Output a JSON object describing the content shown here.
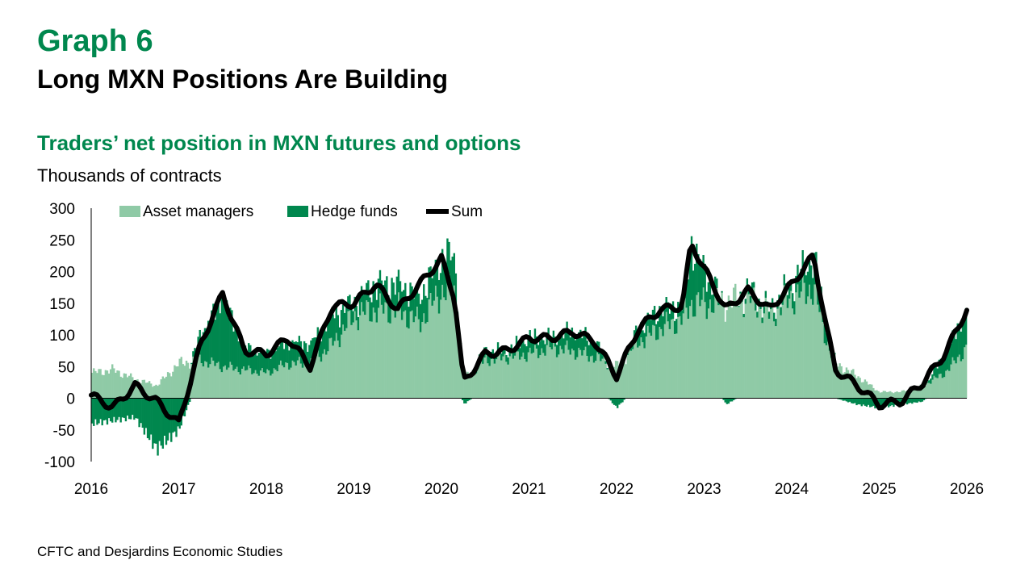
{
  "header": {
    "graph_number": "Graph 6",
    "title": "Long MXN Positions Are Building",
    "subtitle": "Traders’ net position in MXN futures and options",
    "units": "Thousands of contracts"
  },
  "source": "CFTC and Desjardins Economic Studies",
  "colors": {
    "accent": "#00874E",
    "asset_managers": "#8FCAA6",
    "hedge_funds": "#00874E",
    "sum": "#000000"
  },
  "chart_data": {
    "type": "bar",
    "title": "Traders’ net position in MXN futures and options",
    "ylabel": "Thousands of contracts",
    "ylim": [
      -100,
      300
    ],
    "yticks": [
      "300",
      "250",
      "200",
      "150",
      "100",
      "50",
      "0",
      "-50",
      "-100"
    ],
    "xlim": [
      2016,
      2026
    ],
    "xticks": [
      "2016",
      "2017",
      "2018",
      "2019",
      "2020",
      "2021",
      "2022",
      "2023",
      "2024",
      "2025",
      "2026"
    ],
    "legend": [
      "Asset managers",
      "Hedge funds",
      "Sum"
    ],
    "legend_position": "top",
    "x": [
      2016.0,
      2016.25,
      2016.5,
      2016.75,
      2017.0,
      2017.25,
      2017.5,
      2017.75,
      2018.0,
      2018.25,
      2018.5,
      2018.75,
      2019.0,
      2019.25,
      2019.5,
      2019.75,
      2020.0,
      2020.15,
      2020.25,
      2020.5,
      2020.75,
      2021.0,
      2021.25,
      2021.5,
      2021.75,
      2022.0,
      2022.25,
      2022.5,
      2022.75,
      2022.85,
      2023.0,
      2023.25,
      2023.5,
      2023.75,
      2024.0,
      2024.25,
      2024.4,
      2024.5,
      2024.75,
      2025.0,
      2025.25,
      2025.5,
      2025.75,
      2026.0
    ],
    "series": [
      {
        "name": "Asset managers",
        "type": "bar",
        "values": [
          40,
          45,
          30,
          20,
          55,
          60,
          50,
          45,
          40,
          55,
          55,
          85,
          130,
          140,
          140,
          120,
          170,
          165,
          30,
          60,
          65,
          70,
          80,
          75,
          65,
          50,
          90,
          110,
          125,
          150,
          150,
          150,
          160,
          130,
          160,
          175,
          90,
          55,
          35,
          10,
          10,
          20,
          40,
          80
        ]
      },
      {
        "name": "Hedge funds",
        "type": "bar",
        "values": [
          -40,
          -35,
          -30,
          -80,
          -50,
          40,
          110,
          35,
          30,
          35,
          30,
          45,
          20,
          40,
          40,
          40,
          50,
          60,
          -10,
          15,
          10,
          25,
          15,
          30,
          25,
          -15,
          20,
          30,
          20,
          90,
          55,
          -10,
          10,
          10,
          20,
          50,
          20,
          0,
          -10,
          -15,
          -10,
          -5,
          30,
          60
        ]
      },
      {
        "name": "Sum",
        "type": "line",
        "values": [
          5,
          -15,
          20,
          -5,
          -40,
          85,
          165,
          75,
          70,
          95,
          50,
          145,
          150,
          180,
          140,
          180,
          220,
          160,
          25,
          70,
          75,
          95,
          95,
          105,
          90,
          35,
          110,
          140,
          145,
          245,
          205,
          140,
          170,
          140,
          180,
          225,
          110,
          45,
          20,
          -10,
          -5,
          25,
          70,
          140
        ]
      }
    ]
  }
}
